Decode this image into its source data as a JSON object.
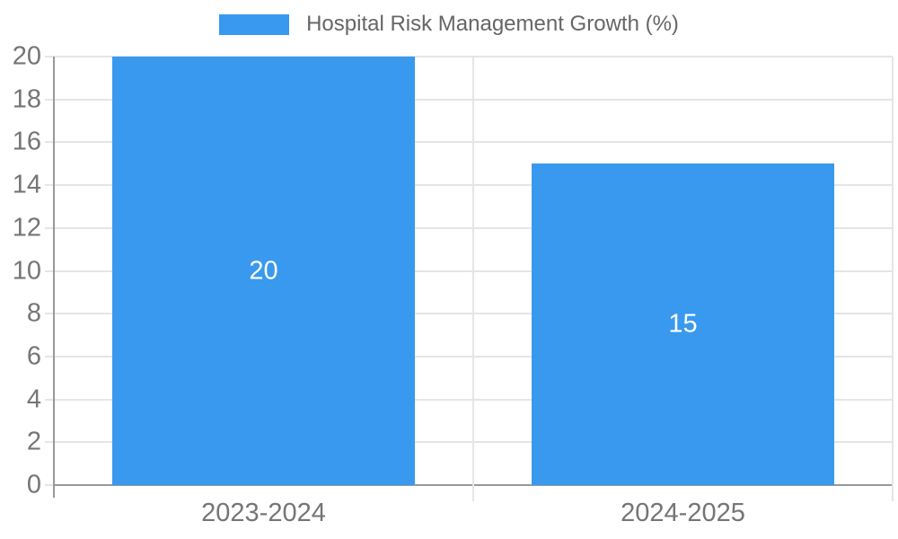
{
  "chart_data": {
    "type": "bar",
    "title": "",
    "series_name": "Hospital Risk Management Growth (%)",
    "categories": [
      "2023-2024",
      "2024-2025"
    ],
    "values": [
      20,
      15
    ],
    "bar_labels": [
      "20",
      "15"
    ],
    "xlabel": "",
    "ylabel": "",
    "ylim": [
      0,
      20
    ],
    "yticks": [
      0,
      2,
      4,
      6,
      8,
      10,
      12,
      14,
      16,
      18,
      20
    ],
    "grid": true,
    "legend_position": "top-center",
    "bar_label_position": "center",
    "colors": {
      "bar": "#3899ee",
      "bar_label": "#ffffff",
      "gridline": "#e5e5e5",
      "axis_line": "#999999",
      "axis_label": "#757575",
      "legend_text": "#666666",
      "background": "#ffffff"
    }
  }
}
